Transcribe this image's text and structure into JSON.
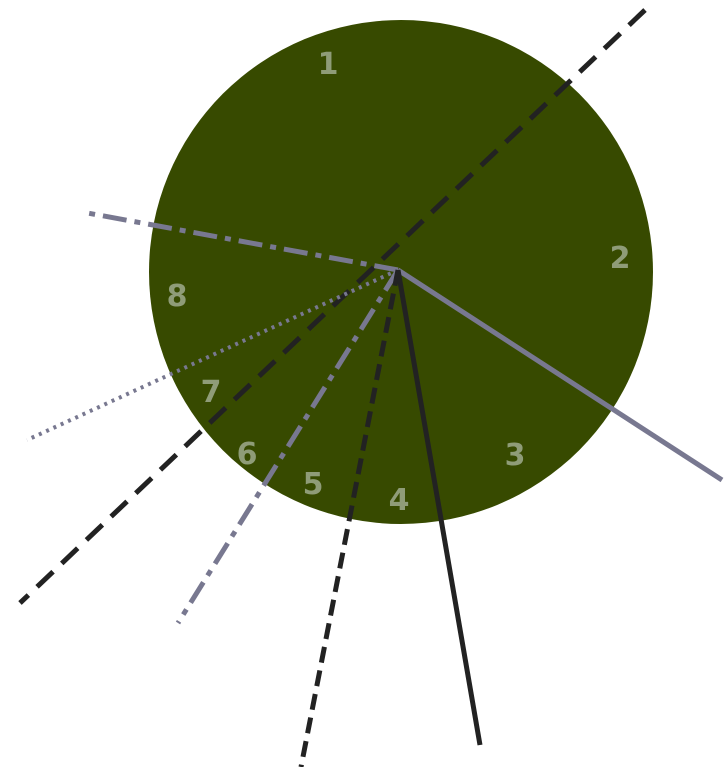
{
  "disk": {
    "fill": "#374a00"
  },
  "labels": [
    {
      "id": "1",
      "text": "1"
    },
    {
      "id": "2",
      "text": "2"
    },
    {
      "id": "3",
      "text": "3"
    },
    {
      "id": "4",
      "text": "4"
    },
    {
      "id": "5",
      "text": "5"
    },
    {
      "id": "6",
      "text": "6"
    },
    {
      "id": "7",
      "text": "7"
    },
    {
      "id": "8",
      "text": "8"
    }
  ],
  "colors": {
    "label": "#8f9c78",
    "line_dark": "#222222",
    "line_grey": "#787890"
  }
}
